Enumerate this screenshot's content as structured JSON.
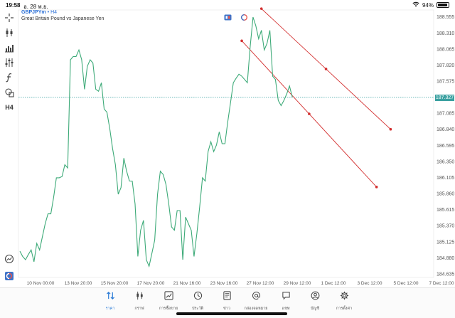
{
  "status_bar": {
    "time": "19:58",
    "date": "อ. 28 พ.ย.",
    "wifi_icon": "wifi-icon",
    "battery_percent_text": "94%",
    "battery_level": 0.94
  },
  "symbol": {
    "name": "GBPJPYm",
    "separator": "•",
    "timeframe": "H4",
    "description": "Great Britain Pound vs Japanese Yen"
  },
  "toolbar": {
    "items": [
      {
        "name": "crosshair",
        "icon": "crosshair-icon"
      },
      {
        "name": "chart-type",
        "icon": "candlestick-icon"
      },
      {
        "name": "indicators",
        "icon": "bar-chart-icon"
      },
      {
        "name": "settings",
        "icon": "sliders-icon"
      },
      {
        "name": "function",
        "icon": "function-icon"
      },
      {
        "name": "objects",
        "icon": "shapes-icon"
      },
      {
        "name": "timeframe",
        "label": "H4"
      }
    ],
    "bottom_items": [
      {
        "name": "trade-history",
        "icon": "clock-trend-icon"
      },
      {
        "name": "one-click",
        "icon": "one-click-icon"
      }
    ]
  },
  "price_axis": {
    "labels": [
      "188.555",
      "188.310",
      "188.065",
      "187.820",
      "187.575",
      "187.327",
      "187.085",
      "186.840",
      "186.595",
      "186.350",
      "186.105",
      "185.860",
      "185.615",
      "185.370",
      "185.125",
      "184.880",
      "184.635"
    ],
    "current_price": "187.327"
  },
  "time_axis": {
    "labels": [
      "10 Nov 00:00",
      "13 Nov 20:00",
      "15 Nov 20:00",
      "17 Nov 20:00",
      "21 Nov 16:00",
      "23 Nov 16:00",
      "27 Nov 12:00",
      "29 Nov 12:00",
      "1 Dec 12:00",
      "3 Dec 12:00",
      "5 Dec 12:00",
      "7 Dec 12:00"
    ]
  },
  "chart_data": {
    "type": "line",
    "series": [
      {
        "values": [
          184.98,
          184.9,
          184.85,
          184.93,
          185.0,
          184.82,
          185.1,
          185.0,
          185.2,
          185.4,
          185.55,
          185.55,
          185.8,
          186.1,
          186.1,
          186.12,
          186.3,
          186.25,
          187.9,
          187.95,
          187.95,
          188.05,
          187.9,
          187.45,
          187.8,
          187.9,
          187.85,
          187.45,
          187.42,
          187.55,
          187.15,
          187.1,
          186.85,
          186.55,
          186.3,
          185.85,
          185.95,
          186.4,
          186.2,
          186.05,
          186.05,
          185.7,
          184.9,
          185.3,
          185.45,
          184.85,
          184.75,
          184.95,
          185.15,
          185.85,
          186.2,
          186.15,
          186.0,
          185.7,
          185.35,
          185.3,
          185.6,
          185.6,
          184.85,
          185.5,
          185.4,
          185.3,
          184.9,
          185.25,
          185.65,
          186.1,
          186.05,
          186.5,
          186.65,
          186.5,
          186.6,
          186.8,
          186.62,
          186.62,
          186.95,
          187.25,
          187.55,
          187.62,
          187.68,
          187.65,
          187.6,
          187.55,
          188.1,
          188.55,
          188.42,
          188.22,
          188.35,
          188.05,
          188.15,
          188.35,
          187.65,
          187.6,
          187.28,
          187.2,
          187.28,
          187.38,
          187.5,
          187.33
        ]
      }
    ],
    "xlabel": "",
    "ylabel": "",
    "ylim": [
      184.58,
      188.66
    ],
    "current_price": 187.327,
    "trendlines": [
      {
        "color": "#d32f2f",
        "from": {
          "bar": 86,
          "price": 188.68
        },
        "to": {
          "bar": 132,
          "price": 186.84
        },
        "midpoint_marker": true
      },
      {
        "color": "#d32f2f",
        "from": {
          "bar": 79,
          "price": 188.19
        },
        "to": {
          "bar": 127,
          "price": 185.96
        },
        "midpoint_marker": true
      }
    ]
  },
  "trade_icons": [
    {
      "name": "sell-buy-icon",
      "color": "#3d73c9"
    },
    {
      "name": "trade-level-icon",
      "color": "#e8554e"
    }
  ],
  "tabbar": {
    "items": [
      {
        "name": "tab-quotes",
        "label": "ราคา",
        "icon": "quotes-arrows-icon",
        "active": true
      },
      {
        "name": "tab-chart",
        "label": "กราฟ",
        "icon": "candlestick-icon",
        "active": false
      },
      {
        "name": "tab-trade",
        "label": "การซื้อขาย",
        "icon": "trend-chart-icon",
        "active": false
      },
      {
        "name": "tab-history",
        "label": "ประวัติ",
        "icon": "history-icon",
        "active": false
      },
      {
        "name": "tab-news",
        "label": "ข่าว",
        "icon": "news-icon",
        "active": false
      },
      {
        "name": "tab-mailbox",
        "label": "กล่องจดหมาย",
        "icon": "at-icon",
        "active": false
      },
      {
        "name": "tab-chat",
        "label": "แชท",
        "icon": "chat-icon",
        "active": false
      },
      {
        "name": "tab-accounts",
        "label": "บัญชี",
        "icon": "account-icon",
        "active": false
      },
      {
        "name": "tab-settings",
        "label": "การตั้งค่า",
        "icon": "gear-icon",
        "active": false
      }
    ]
  },
  "colors": {
    "line": "#3daa78",
    "trendline": "#d32f2f",
    "current_price_bg": "#3aa0a0",
    "accent": "#2a7ad6"
  }
}
